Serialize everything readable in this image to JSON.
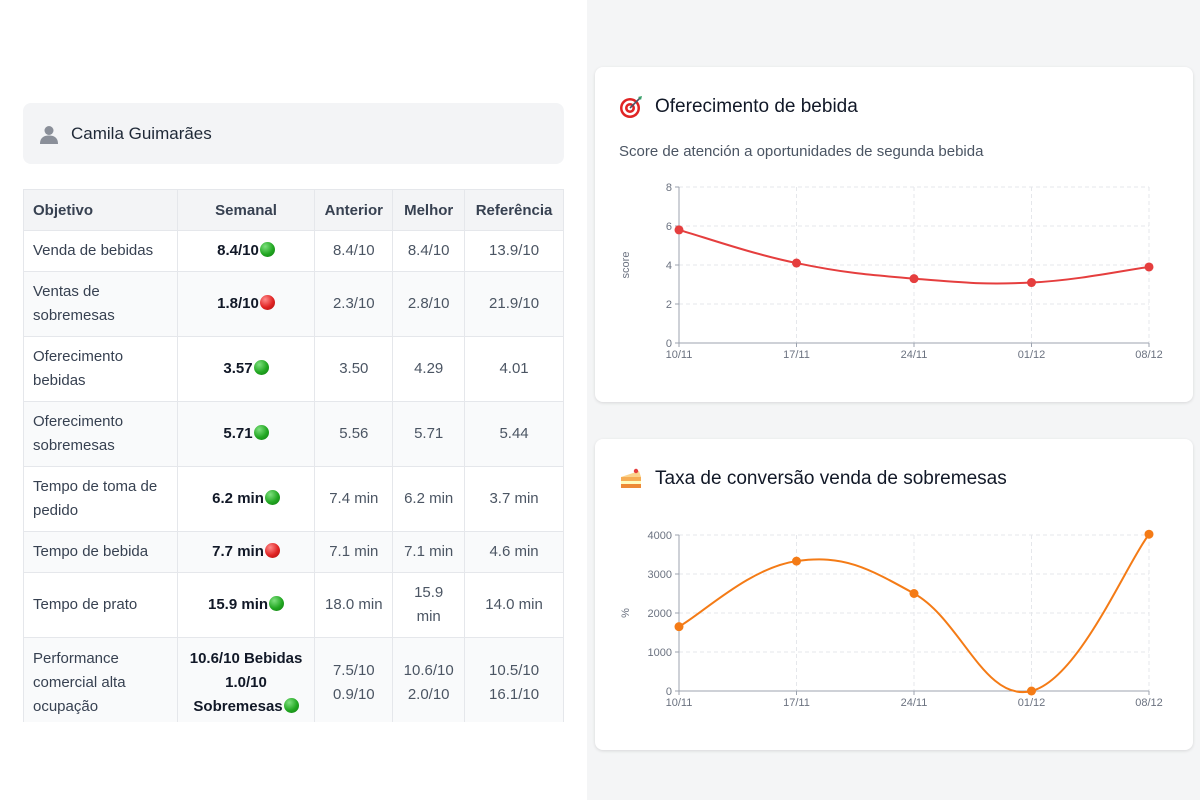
{
  "user": {
    "name": "Camila Guimarães",
    "icon": "user-icon"
  },
  "table": {
    "headers": [
      "Objetivo",
      "Semanal",
      "Anterior",
      "Melhor",
      "Referência"
    ],
    "rows": [
      {
        "objective": "Venda de bebidas",
        "weekly": "8.4/10",
        "status": "green",
        "previous": "8.4/10",
        "best": "8.4/10",
        "reference": "13.9/10"
      },
      {
        "objective": "Ventas de sobremesas",
        "weekly": "1.8/10",
        "status": "red",
        "previous": "2.3/10",
        "best": "2.8/10",
        "reference": "21.9/10"
      },
      {
        "objective": "Oferecimento bebidas",
        "weekly": "3.57",
        "status": "green",
        "previous": "3.50",
        "best": "4.29",
        "reference": "4.01"
      },
      {
        "objective": "Oferecimento sobremesas",
        "weekly": "5.71",
        "status": "green",
        "previous": "5.56",
        "best": "5.71",
        "reference": "5.44"
      },
      {
        "objective": "Tempo de toma de pedido",
        "weekly": "6.2 min",
        "status": "green",
        "previous": "7.4 min",
        "best": "6.2 min",
        "reference": "3.7 min"
      },
      {
        "objective": "Tempo de bebida",
        "weekly": "7.7 min",
        "status": "red",
        "previous": "7.1 min",
        "best": "7.1 min",
        "reference": "4.6 min"
      },
      {
        "objective": "Tempo de prato",
        "weekly": "15.9 min",
        "status": "green",
        "previous": "18.0 min",
        "best": "15.9 min",
        "reference": "14.0 min"
      },
      {
        "objective": "Performance comercial alta ocupação",
        "weekly_line1": "10.6/10 Bebidas",
        "weekly_line2": "1.0/10",
        "weekly_line3": "Sobremesas",
        "status": "green",
        "previous_line1": "7.5/10",
        "previous_line2": "0.9/10",
        "best_line1": "10.6/10",
        "best_line2": "2.0/10",
        "reference_line1": "10.5/10",
        "reference_line2": "16.1/10"
      }
    ],
    "status_colors": {
      "green": "#22a722",
      "red": "#e02323"
    }
  },
  "chart_data": [
    {
      "type": "line",
      "title": "Oferecimento de bebida",
      "title_icon": "target-icon",
      "subtitle": "Score de atención a oportunidades de segunda bebida",
      "ylabel": "score",
      "categories": [
        "10/11",
        "17/11",
        "24/11",
        "01/12",
        "08/12"
      ],
      "values": [
        5.8,
        4.1,
        3.3,
        3.1,
        3.9
      ],
      "ylim": [
        0,
        8
      ],
      "yticks": [
        0,
        2,
        4,
        6,
        8
      ],
      "color": "#e53e3e",
      "grid": true
    },
    {
      "type": "line",
      "title": "Taxa de conversão venda de sobremesas",
      "title_icon": "cake-icon",
      "ylabel": "%",
      "categories": [
        "10/11",
        "17/11",
        "24/11",
        "01/12",
        "08/12"
      ],
      "values": [
        1650,
        3330,
        2500,
        0,
        4020
      ],
      "ylim": [
        0,
        4000
      ],
      "yticks": [
        0,
        1000,
        2000,
        3000,
        4000
      ],
      "color": "#f47b16",
      "grid": true
    }
  ]
}
